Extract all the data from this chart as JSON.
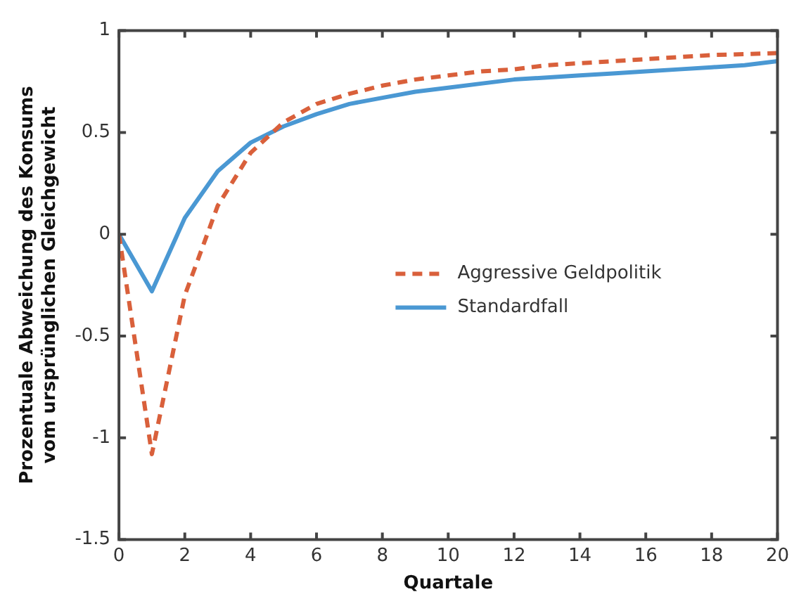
{
  "chart_data": {
    "type": "line",
    "xlabel": "Quartale",
    "ylabel": "Prozentuale Abweichung des Konsums\nvom ursprünglichen Gleichgewicht",
    "x": [
      0,
      1,
      2,
      3,
      4,
      5,
      6,
      7,
      8,
      9,
      10,
      11,
      12,
      13,
      14,
      15,
      16,
      17,
      18,
      19,
      20
    ],
    "series": [
      {
        "name": "Aggressive Geldpolitik",
        "color": "#d9603b",
        "line_style": "dashed",
        "values": [
          0,
          -1.08,
          -0.3,
          0.14,
          0.4,
          0.55,
          0.64,
          0.69,
          0.73,
          0.76,
          0.78,
          0.8,
          0.81,
          0.83,
          0.84,
          0.85,
          0.86,
          0.87,
          0.88,
          0.885,
          0.89
        ]
      },
      {
        "name": "Standardfall",
        "color": "#4a98d3",
        "line_style": "solid",
        "values": [
          0,
          -0.28,
          0.08,
          0.31,
          0.45,
          0.53,
          0.59,
          0.64,
          0.67,
          0.7,
          0.72,
          0.74,
          0.76,
          0.77,
          0.78,
          0.79,
          0.8,
          0.81,
          0.82,
          0.83,
          0.85
        ]
      }
    ],
    "xlim": [
      0,
      20
    ],
    "xticks": [
      0,
      2,
      4,
      6,
      8,
      10,
      12,
      14,
      16,
      18,
      20
    ],
    "ylim": [
      -1.5,
      1
    ],
    "yticks": [
      -1.5,
      -1,
      -0.5,
      0,
      0.5,
      1
    ],
    "grid": false,
    "legend": "right",
    "marker": "none"
  }
}
